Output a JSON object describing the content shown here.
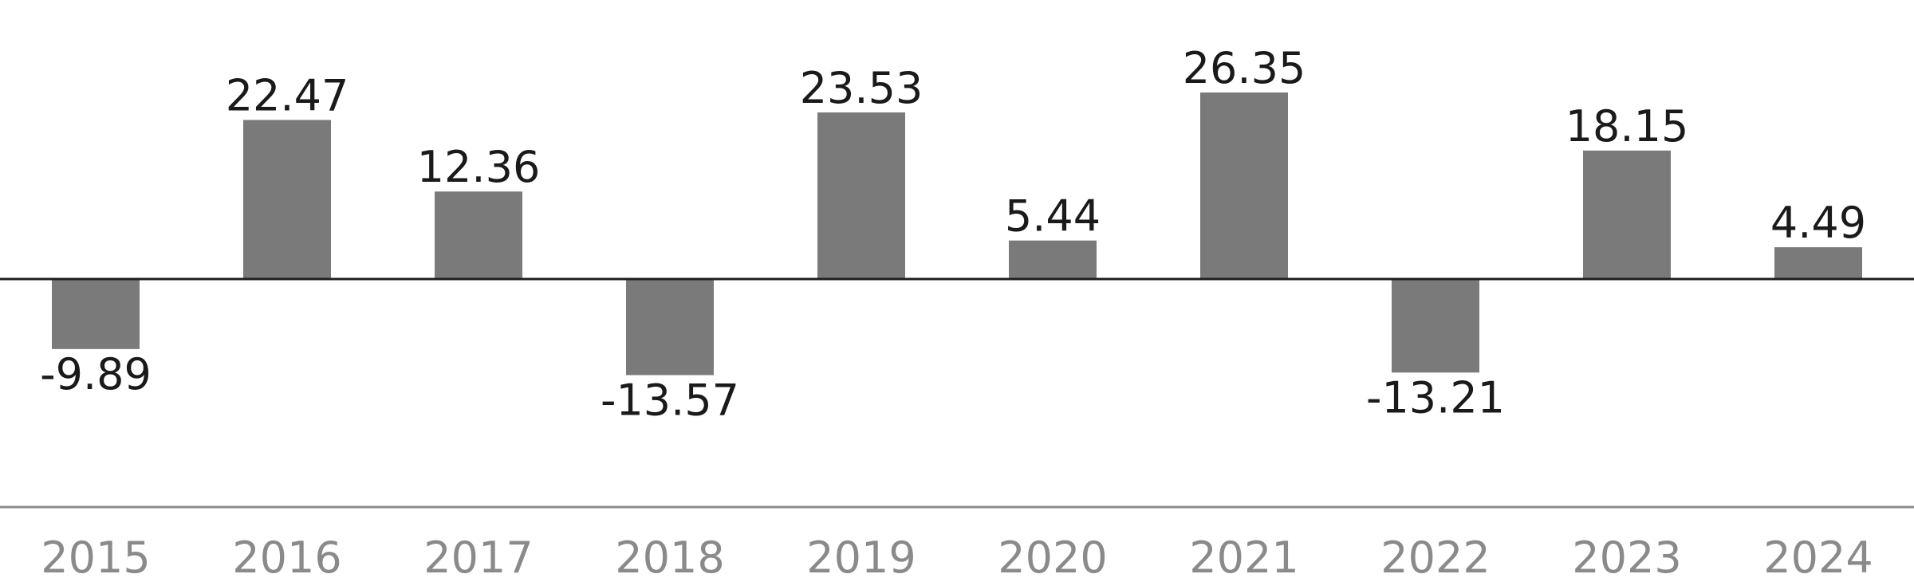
{
  "chart_data": {
    "type": "bar",
    "title": "",
    "xlabel": "",
    "ylabel": "",
    "categories": [
      "2015",
      "2016",
      "2017",
      "2018",
      "2019",
      "2020",
      "2021",
      "2022",
      "2023",
      "2024"
    ],
    "values": [
      -9.89,
      22.47,
      12.36,
      -13.57,
      23.53,
      5.44,
      26.35,
      -13.21,
      18.15,
      4.49
    ],
    "data_labels": [
      "-9.89",
      "22.47",
      "12.36",
      "-13.57",
      "23.53",
      "5.44",
      "26.35",
      "-13.21",
      "18.15",
      "4.49"
    ],
    "ylim": [
      -28,
      28
    ],
    "grid": false,
    "legend": "none",
    "colors": {
      "bar": "#7a7a7a",
      "zero_line": "#1f1f1f",
      "baseline": "#8c8c8c",
      "value_text": "#1a1a1a",
      "year_text": "#8a8a8a"
    }
  }
}
